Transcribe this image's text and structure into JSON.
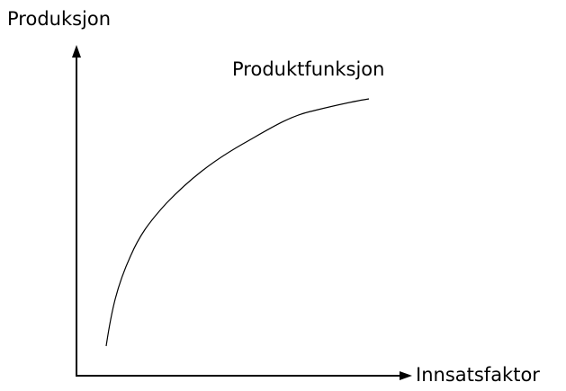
{
  "axes": {
    "y_label": "Produksjon",
    "x_label": "Innsatsfaktor"
  },
  "curve": {
    "label": "Produktfunksjon"
  }
}
